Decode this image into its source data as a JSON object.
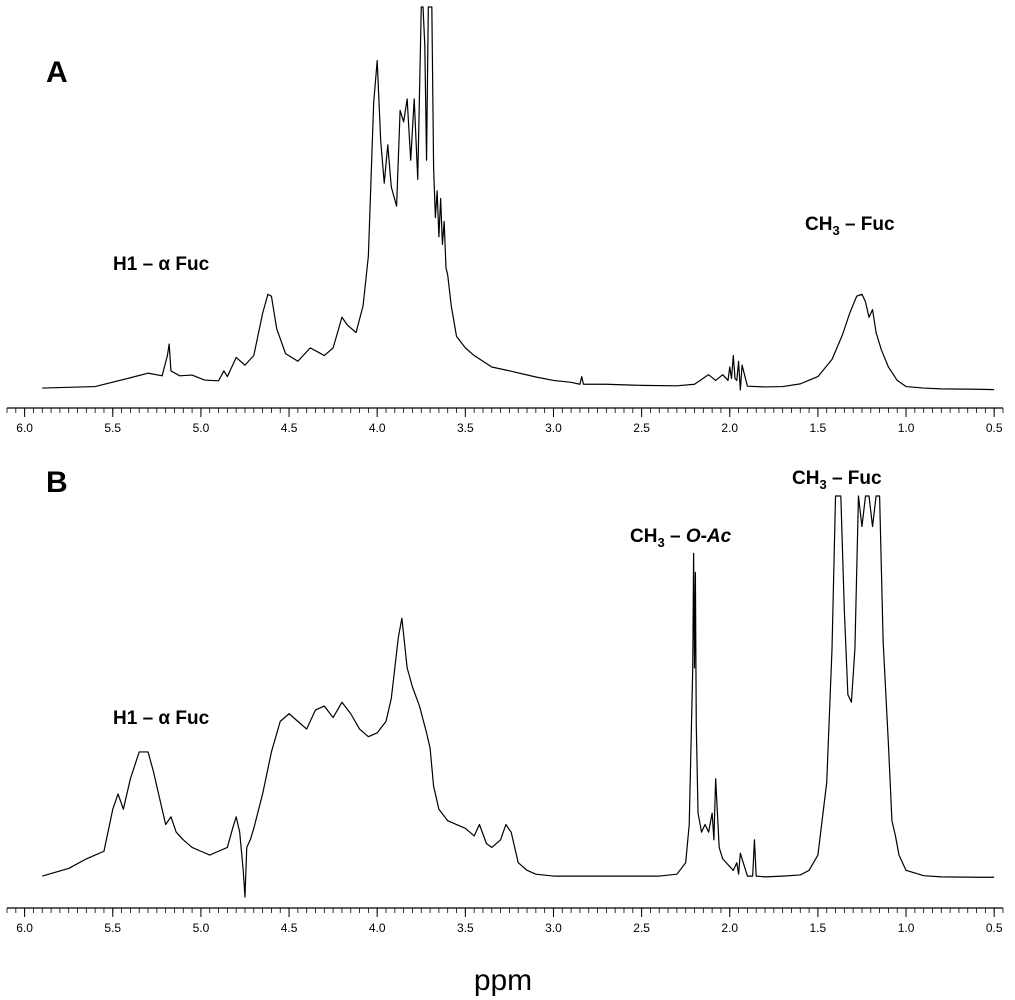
{
  "chart_data": [
    {
      "panel": "A",
      "type": "line",
      "x_reversed": true,
      "xlim": [
        6.1,
        0.45
      ],
      "ticks": [
        "6.0",
        "5.5",
        "5.0",
        "4.5",
        "4.0",
        "3.5",
        "3.0",
        "2.5",
        "2.0",
        "1.5",
        "1.0",
        "0.5"
      ],
      "minor_tick_step": 0.05,
      "annotations": [
        {
          "text_main": "H1 – α Fuc",
          "sub": "",
          "text_after": "",
          "italic": ""
        },
        {
          "text_main": "CH",
          "sub": "3",
          "text_after": " – Fuc",
          "italic": ""
        }
      ],
      "ylim": [
        0,
        100
      ],
      "series": [
        {
          "x": [
            5.9,
            5.6,
            5.4,
            5.3,
            5.22,
            5.19,
            5.18,
            5.17,
            5.12,
            5.05,
            4.98,
            4.9,
            4.87,
            4.85,
            4.8,
            4.75,
            4.7,
            4.65,
            4.62,
            4.6,
            4.57,
            4.52,
            4.45,
            4.38,
            4.34,
            4.3,
            4.25,
            4.2,
            4.17,
            4.12,
            4.08,
            4.05,
            4.02,
            4.0,
            3.98,
            3.96,
            3.94,
            3.92,
            3.89,
            3.87,
            3.85,
            3.83,
            3.81,
            3.79,
            3.77,
            3.75,
            3.74,
            3.73,
            3.72,
            3.71,
            3.7,
            3.69,
            3.68,
            3.67,
            3.66,
            3.65,
            3.64,
            3.63,
            3.62,
            3.61,
            3.6,
            3.58,
            3.55,
            3.5,
            3.45,
            3.35,
            3.25,
            3.1,
            3.0,
            2.9,
            2.85,
            2.84,
            2.83,
            2.7,
            2.5,
            2.3,
            2.2,
            2.12,
            2.08,
            2.04,
            2.01,
            2.0,
            1.99,
            1.98,
            1.97,
            1.96,
            1.95,
            1.94,
            1.93,
            1.9,
            1.8,
            1.7,
            1.6,
            1.5,
            1.42,
            1.36,
            1.32,
            1.28,
            1.25,
            1.23,
            1.21,
            1.19,
            1.17,
            1.14,
            1.1,
            1.05,
            1.0,
            0.9,
            0.8,
            0.6,
            0.5
          ],
          "y": [
            0.5,
            0.9,
            3.2,
            4.4,
            3.7,
            9,
            12,
            5,
            3.7,
            3.9,
            2.6,
            2.4,
            5,
            3.5,
            8.5,
            6.5,
            9,
            20,
            25,
            24.5,
            16,
            9.5,
            7.5,
            11,
            10,
            9,
            11,
            19,
            17,
            15,
            22,
            35,
            75,
            86,
            65,
            54,
            64,
            53,
            48,
            73,
            70,
            76,
            60,
            76,
            55,
            100,
            100,
            90,
            60,
            100,
            100,
            100,
            58,
            45,
            52,
            40,
            50,
            38,
            44,
            32,
            30,
            22,
            14,
            11,
            9,
            6,
            5,
            3.4,
            2.5,
            2,
            1.5,
            3.5,
            1.5,
            1.5,
            1.2,
            1.1,
            1.5,
            4,
            2.5,
            4,
            2.5,
            6,
            3,
            9,
            3,
            2.5,
            7.5,
            0,
            6.5,
            1,
            0.8,
            0.9,
            1.6,
            3.5,
            8,
            14.5,
            20,
            24.5,
            25,
            23,
            19,
            21,
            15,
            10.5,
            6,
            2.5,
            0.9,
            0.5,
            0.3,
            0.2,
            0.1
          ]
        }
      ]
    },
    {
      "panel": "B",
      "type": "line",
      "x_reversed": true,
      "xlim": [
        6.1,
        0.45
      ],
      "ticks": [
        "6.0",
        "5.5",
        "5.0",
        "4.5",
        "4.0",
        "3.5",
        "3.0",
        "2.5",
        "2.0",
        "1.5",
        "1.0",
        "0.5"
      ],
      "minor_tick_step": 0.05,
      "annotations": [
        {
          "text_main": "H1 – α Fuc",
          "sub": "",
          "text_after": "",
          "italic": ""
        },
        {
          "text_main": "CH",
          "sub": "3",
          "text_after": " – ",
          "italic": "O-Ac"
        },
        {
          "text_main": "CH",
          "sub": "3",
          "text_after": " – Fuc",
          "italic": ""
        }
      ],
      "ylim": [
        0,
        100
      ],
      "series": [
        {
          "x": [
            5.9,
            5.75,
            5.65,
            5.6,
            5.55,
            5.5,
            5.47,
            5.44,
            5.4,
            5.35,
            5.3,
            5.27,
            5.24,
            5.2,
            5.17,
            5.14,
            5.1,
            5.05,
            5.0,
            4.95,
            4.9,
            4.85,
            4.82,
            4.8,
            4.78,
            4.76,
            4.75,
            4.74,
            4.72,
            4.7,
            4.65,
            4.6,
            4.55,
            4.5,
            4.45,
            4.4,
            4.35,
            4.3,
            4.25,
            4.2,
            4.15,
            4.1,
            4.05,
            4.0,
            3.95,
            3.92,
            3.88,
            3.86,
            3.83,
            3.8,
            3.76,
            3.72,
            3.7,
            3.68,
            3.65,
            3.6,
            3.55,
            3.5,
            3.45,
            3.42,
            3.38,
            3.35,
            3.3,
            3.27,
            3.24,
            3.2,
            3.15,
            3.1,
            3.0,
            2.8,
            2.6,
            2.4,
            2.3,
            2.25,
            2.23,
            2.21,
            2.205,
            2.2,
            2.195,
            2.19,
            2.18,
            2.16,
            2.14,
            2.12,
            2.1,
            2.09,
            2.08,
            2.06,
            2.04,
            2.02,
            2.0,
            1.98,
            1.96,
            1.95,
            1.94,
            1.9,
            1.87,
            1.86,
            1.85,
            1.8,
            1.7,
            1.6,
            1.55,
            1.5,
            1.45,
            1.42,
            1.4,
            1.37,
            1.35,
            1.33,
            1.31,
            1.29,
            1.27,
            1.25,
            1.23,
            1.21,
            1.19,
            1.17,
            1.15,
            1.13,
            1.1,
            1.08,
            1.06,
            1.04,
            1.0,
            0.9,
            0.8,
            0.6,
            0.5
          ],
          "y": [
            0.5,
            2.5,
            5,
            6,
            7,
            18,
            22,
            18,
            26,
            33,
            33,
            28,
            22,
            14,
            16,
            12,
            10,
            8,
            7,
            6,
            7,
            8,
            13,
            16,
            12,
            2,
            -5,
            8,
            10,
            13,
            22,
            33,
            41,
            43,
            41,
            39,
            44,
            45,
            42,
            46,
            43,
            39,
            37,
            38,
            41,
            47,
            63,
            68,
            55,
            50,
            45,
            38,
            34,
            24,
            18,
            15,
            14,
            13,
            11,
            14,
            9,
            8,
            10,
            14,
            12,
            4,
            2,
            1,
            0.5,
            0.5,
            0.5,
            0.5,
            1,
            4,
            14,
            55,
            85,
            55,
            80,
            40,
            17,
            12,
            14,
            12,
            17,
            10,
            26,
            8,
            5,
            4,
            3,
            2,
            4,
            1,
            6.5,
            0.5,
            0.5,
            10,
            0.5,
            0.3,
            0.5,
            0.8,
            2,
            6,
            25,
            60,
            100,
            100,
            70,
            48,
            46,
            60,
            100,
            92,
            100,
            100,
            92,
            100,
            100,
            62,
            35,
            15,
            11,
            6,
            2,
            0.6,
            0.3,
            0.2,
            0.2
          ]
        }
      ]
    }
  ],
  "figure": {
    "panel_labels": [
      "A",
      "B"
    ],
    "xlabel": "ppm",
    "colors": {
      "line": "#000000",
      "background": "#ffffff"
    }
  }
}
